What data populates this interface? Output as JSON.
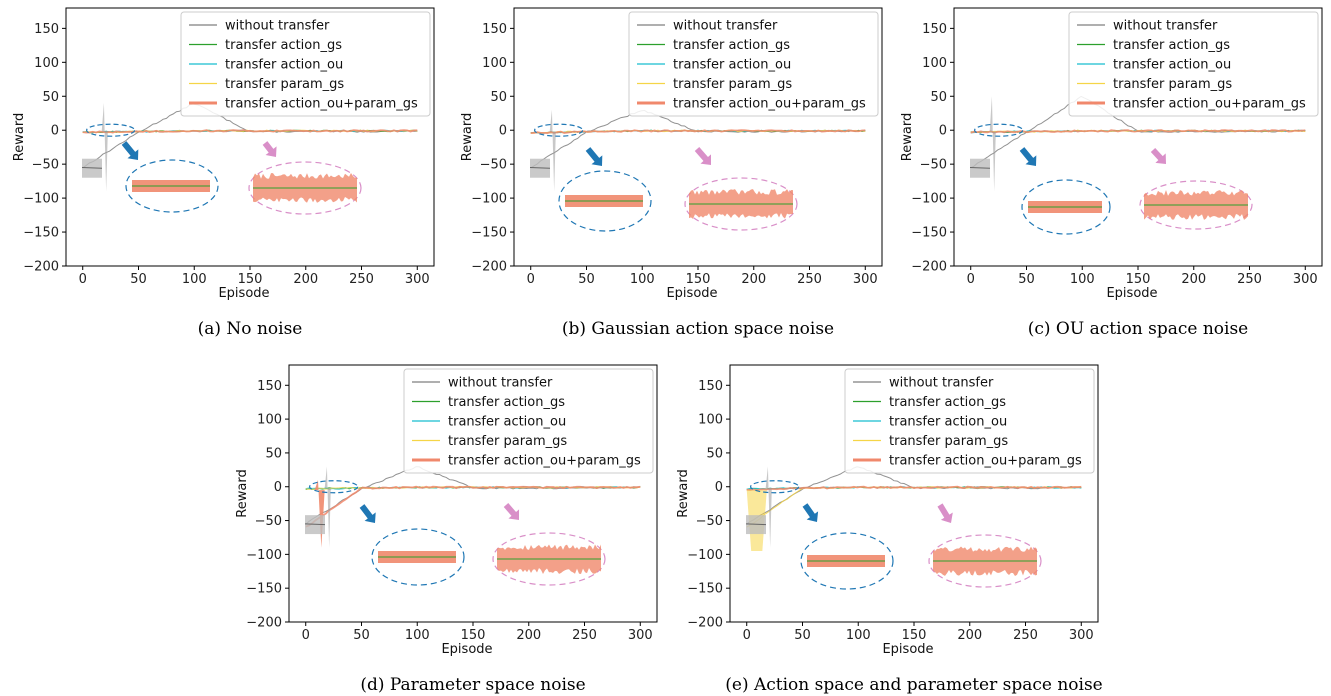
{
  "chart_data": [
    {
      "type": "line",
      "caption": "(a) No noise",
      "xlabel": "Episode",
      "ylabel": "Reward",
      "xlim": [
        -15,
        315
      ],
      "ylim": [
        -200,
        180
      ],
      "xticks": [
        0,
        50,
        100,
        150,
        200,
        250,
        300
      ],
      "yticks": [
        -200,
        -150,
        -100,
        -50,
        0,
        50,
        100,
        150
      ],
      "legend_position": "top-right",
      "series": [
        {
          "name": "without transfer",
          "color": "#7f7f7f",
          "values": [
            -55,
            -3,
            40,
            -2,
            -2,
            -2,
            -1
          ]
        },
        {
          "name": "transfer action_gs",
          "color": "#2ca02c",
          "values": [
            -3,
            -2,
            -1,
            -1,
            -1,
            -1,
            -1
          ]
        },
        {
          "name": "transfer action_ou",
          "color": "#17becf",
          "values": [
            -3,
            -2,
            -1,
            -1,
            -1,
            -1,
            -1
          ]
        },
        {
          "name": "transfer param_gs",
          "color": "#f5d547",
          "values": [
            -3,
            -2,
            -1,
            -1,
            -1,
            -1,
            -1
          ]
        },
        {
          "name": "transfer action_ou+param_gs",
          "color": "#f0886c",
          "values": [
            -3,
            -2,
            -1,
            -1,
            -1,
            -1,
            -1
          ]
        }
      ]
    },
    {
      "type": "line",
      "caption": "(b) Gaussian action space noise",
      "xlabel": "Episode",
      "ylabel": "Reward",
      "xlim": [
        -15,
        315
      ],
      "ylim": [
        -200,
        180
      ],
      "xticks": [
        0,
        50,
        100,
        150,
        200,
        250,
        300
      ],
      "yticks": [
        -200,
        -150,
        -100,
        -50,
        0,
        50,
        100,
        150
      ],
      "legend_position": "top-right",
      "series": [
        {
          "name": "without transfer",
          "color": "#7f7f7f",
          "values": [
            -55,
            -3,
            30,
            -2,
            -2,
            -2,
            -1
          ]
        },
        {
          "name": "transfer action_gs",
          "color": "#2ca02c",
          "values": [
            -4,
            -2,
            -1,
            -1,
            -1,
            -1,
            -1
          ]
        },
        {
          "name": "transfer action_ou",
          "color": "#17becf",
          "values": [
            -4,
            -2,
            -1,
            -1,
            -1,
            -1,
            -1
          ]
        },
        {
          "name": "transfer param_gs",
          "color": "#f5d547",
          "values": [
            -4,
            -2,
            -1,
            -1,
            -1,
            -1,
            -1
          ]
        },
        {
          "name": "transfer action_ou+param_gs",
          "color": "#f0886c",
          "values": [
            -4,
            -2,
            -1,
            -1,
            -1,
            -1,
            -1
          ]
        }
      ]
    },
    {
      "type": "line",
      "caption": "(c) OU action space noise",
      "xlabel": "Episode",
      "ylabel": "Reward",
      "xlim": [
        -15,
        315
      ],
      "ylim": [
        -200,
        180
      ],
      "xticks": [
        0,
        50,
        100,
        150,
        200,
        250,
        300
      ],
      "yticks": [
        -200,
        -150,
        -100,
        -50,
        0,
        50,
        100,
        150
      ],
      "legend_position": "top-right",
      "series": [
        {
          "name": "without transfer",
          "color": "#7f7f7f",
          "values": [
            -55,
            -3,
            50,
            -2,
            -2,
            -2,
            -1
          ]
        },
        {
          "name": "transfer action_gs",
          "color": "#2ca02c",
          "values": [
            -3,
            -2,
            -1,
            -1,
            -1,
            -1,
            -1
          ]
        },
        {
          "name": "transfer action_ou",
          "color": "#17becf",
          "values": [
            -3,
            -2,
            -1,
            -1,
            -1,
            -1,
            -1
          ]
        },
        {
          "name": "transfer param_gs",
          "color": "#f5d547",
          "values": [
            -3,
            -2,
            -1,
            -1,
            -1,
            -1,
            -1
          ]
        },
        {
          "name": "transfer action_ou+param_gs",
          "color": "#f0886c",
          "values": [
            -3,
            -2,
            -1,
            -1,
            -1,
            -1,
            -1
          ]
        }
      ]
    },
    {
      "type": "line",
      "caption": "(d) Parameter space noise",
      "xlabel": "Episode",
      "ylabel": "Reward",
      "xlim": [
        -15,
        315
      ],
      "ylim": [
        -200,
        180
      ],
      "xticks": [
        0,
        50,
        100,
        150,
        200,
        250,
        300
      ],
      "yticks": [
        -200,
        -150,
        -100,
        -50,
        0,
        50,
        100,
        150
      ],
      "legend_position": "top-right",
      "series": [
        {
          "name": "without transfer",
          "color": "#7f7f7f",
          "values": [
            -55,
            -3,
            30,
            -2,
            -2,
            -2,
            -1
          ]
        },
        {
          "name": "transfer action_gs",
          "color": "#2ca02c",
          "values": [
            -3,
            -2,
            -1,
            -1,
            -1,
            -1,
            -1
          ]
        },
        {
          "name": "transfer action_ou",
          "color": "#17becf",
          "values": [
            -3,
            -2,
            -1,
            -1,
            -1,
            -1,
            -1
          ]
        },
        {
          "name": "transfer param_gs",
          "color": "#f5d547",
          "values": [
            -3,
            -2,
            -1,
            -1,
            -1,
            -1,
            -1
          ]
        },
        {
          "name": "transfer action_ou+param_gs",
          "color": "#f0886c",
          "values": [
            -60,
            -2,
            -1,
            -1,
            -1,
            -1,
            -1
          ]
        }
      ]
    },
    {
      "type": "line",
      "caption": "(e) Action space and parameter space noise",
      "xlabel": "Episode",
      "ylabel": "Reward",
      "xlim": [
        -15,
        315
      ],
      "ylim": [
        -200,
        180
      ],
      "xticks": [
        0,
        50,
        100,
        150,
        200,
        250,
        300
      ],
      "yticks": [
        -200,
        -150,
        -100,
        -50,
        0,
        50,
        100,
        150
      ],
      "legend_position": "top-right",
      "series": [
        {
          "name": "without transfer",
          "color": "#7f7f7f",
          "values": [
            -55,
            -3,
            30,
            -2,
            -2,
            -2,
            -1
          ]
        },
        {
          "name": "transfer action_gs",
          "color": "#2ca02c",
          "values": [
            -3,
            -2,
            -1,
            -1,
            -1,
            -1,
            -1
          ]
        },
        {
          "name": "transfer action_ou",
          "color": "#17becf",
          "values": [
            -3,
            -2,
            -1,
            -1,
            -1,
            -1,
            -1
          ]
        },
        {
          "name": "transfer param_gs",
          "color": "#f5d547",
          "values": [
            -60,
            -2,
            -1,
            -1,
            -1,
            -1,
            -1
          ]
        },
        {
          "name": "transfer action_ou+param_gs",
          "color": "#f0886c",
          "values": [
            -5,
            -2,
            -1,
            -1,
            -1,
            -1,
            -1
          ]
        }
      ]
    }
  ]
}
